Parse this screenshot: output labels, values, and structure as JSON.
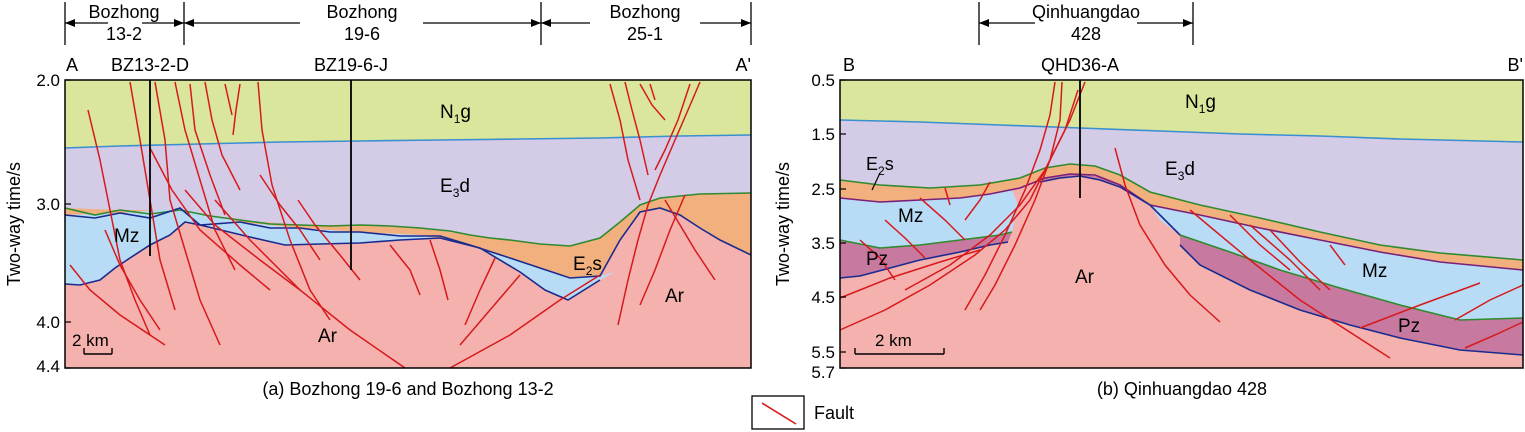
{
  "colors": {
    "n1g": "#d9e69b",
    "e3d": "#d4cbe6",
    "e2s": "#f2b07e",
    "mz": "#b8dcf5",
    "pz": "#c8799f",
    "ar": "#f4b1ad",
    "fault": "#d7191c",
    "horizon_blue": "#3a8fd0",
    "horizon_green": "#2e8b2e",
    "horizon_purple": "#7a1f7a",
    "horizon_navy": "#1a2b8f"
  },
  "panel_a": {
    "caption": "(a) Bozhong 19-6 and Bozhong 13-2",
    "left_label": "A",
    "right_label": "A'",
    "y_axis_label": "Two-way time/s",
    "y_ticks": [
      "2.0",
      "3.0",
      "4.0",
      "4.4"
    ],
    "fields": [
      {
        "line1": "Bozhong",
        "line2": "13-2"
      },
      {
        "line1": "Bozhong",
        "line2": "19-6"
      },
      {
        "line1": "Bozhong",
        "line2": "25-1"
      }
    ],
    "wells": [
      "BZ13-2-D",
      "BZ19-6-J"
    ],
    "unit_labels": {
      "n1g_main": "N",
      "n1g_sub": "1",
      "n1g_tail": "g",
      "e3d_main": "E",
      "e3d_sub": "3",
      "e3d_tail": "d",
      "e2s_main": "E",
      "e2s_sub": "2",
      "e2s_tail": "s",
      "mz": "Mz",
      "ar_1": "Ar",
      "ar_2": "Ar"
    },
    "scale_label": "2 km"
  },
  "panel_b": {
    "caption": "(b) Qinhuangdao 428",
    "left_label": "B",
    "right_label": "B'",
    "y_axis_label": "Two-way time/s",
    "y_ticks": [
      "0.5",
      "1.5",
      "2.5",
      "3.5",
      "4.5",
      "5.5",
      "5.7"
    ],
    "field": {
      "line1": "Qinhuangdao",
      "line2": "428"
    },
    "well": "QHD36-A",
    "unit_labels": {
      "n1g_main": "N",
      "n1g_sub": "1",
      "n1g_tail": "g",
      "e3d_main": "E",
      "e3d_sub": "3",
      "e3d_tail": "d",
      "e2s_main": "E",
      "e2s_sub": "2",
      "e2s_tail": "s",
      "mz_1": "Mz",
      "mz_2": "Mz",
      "pz_1": "Pz",
      "pz_2": "Pz",
      "ar": "Ar"
    },
    "scale_label": "2 km"
  },
  "legend": {
    "fault_label": "Fault"
  }
}
